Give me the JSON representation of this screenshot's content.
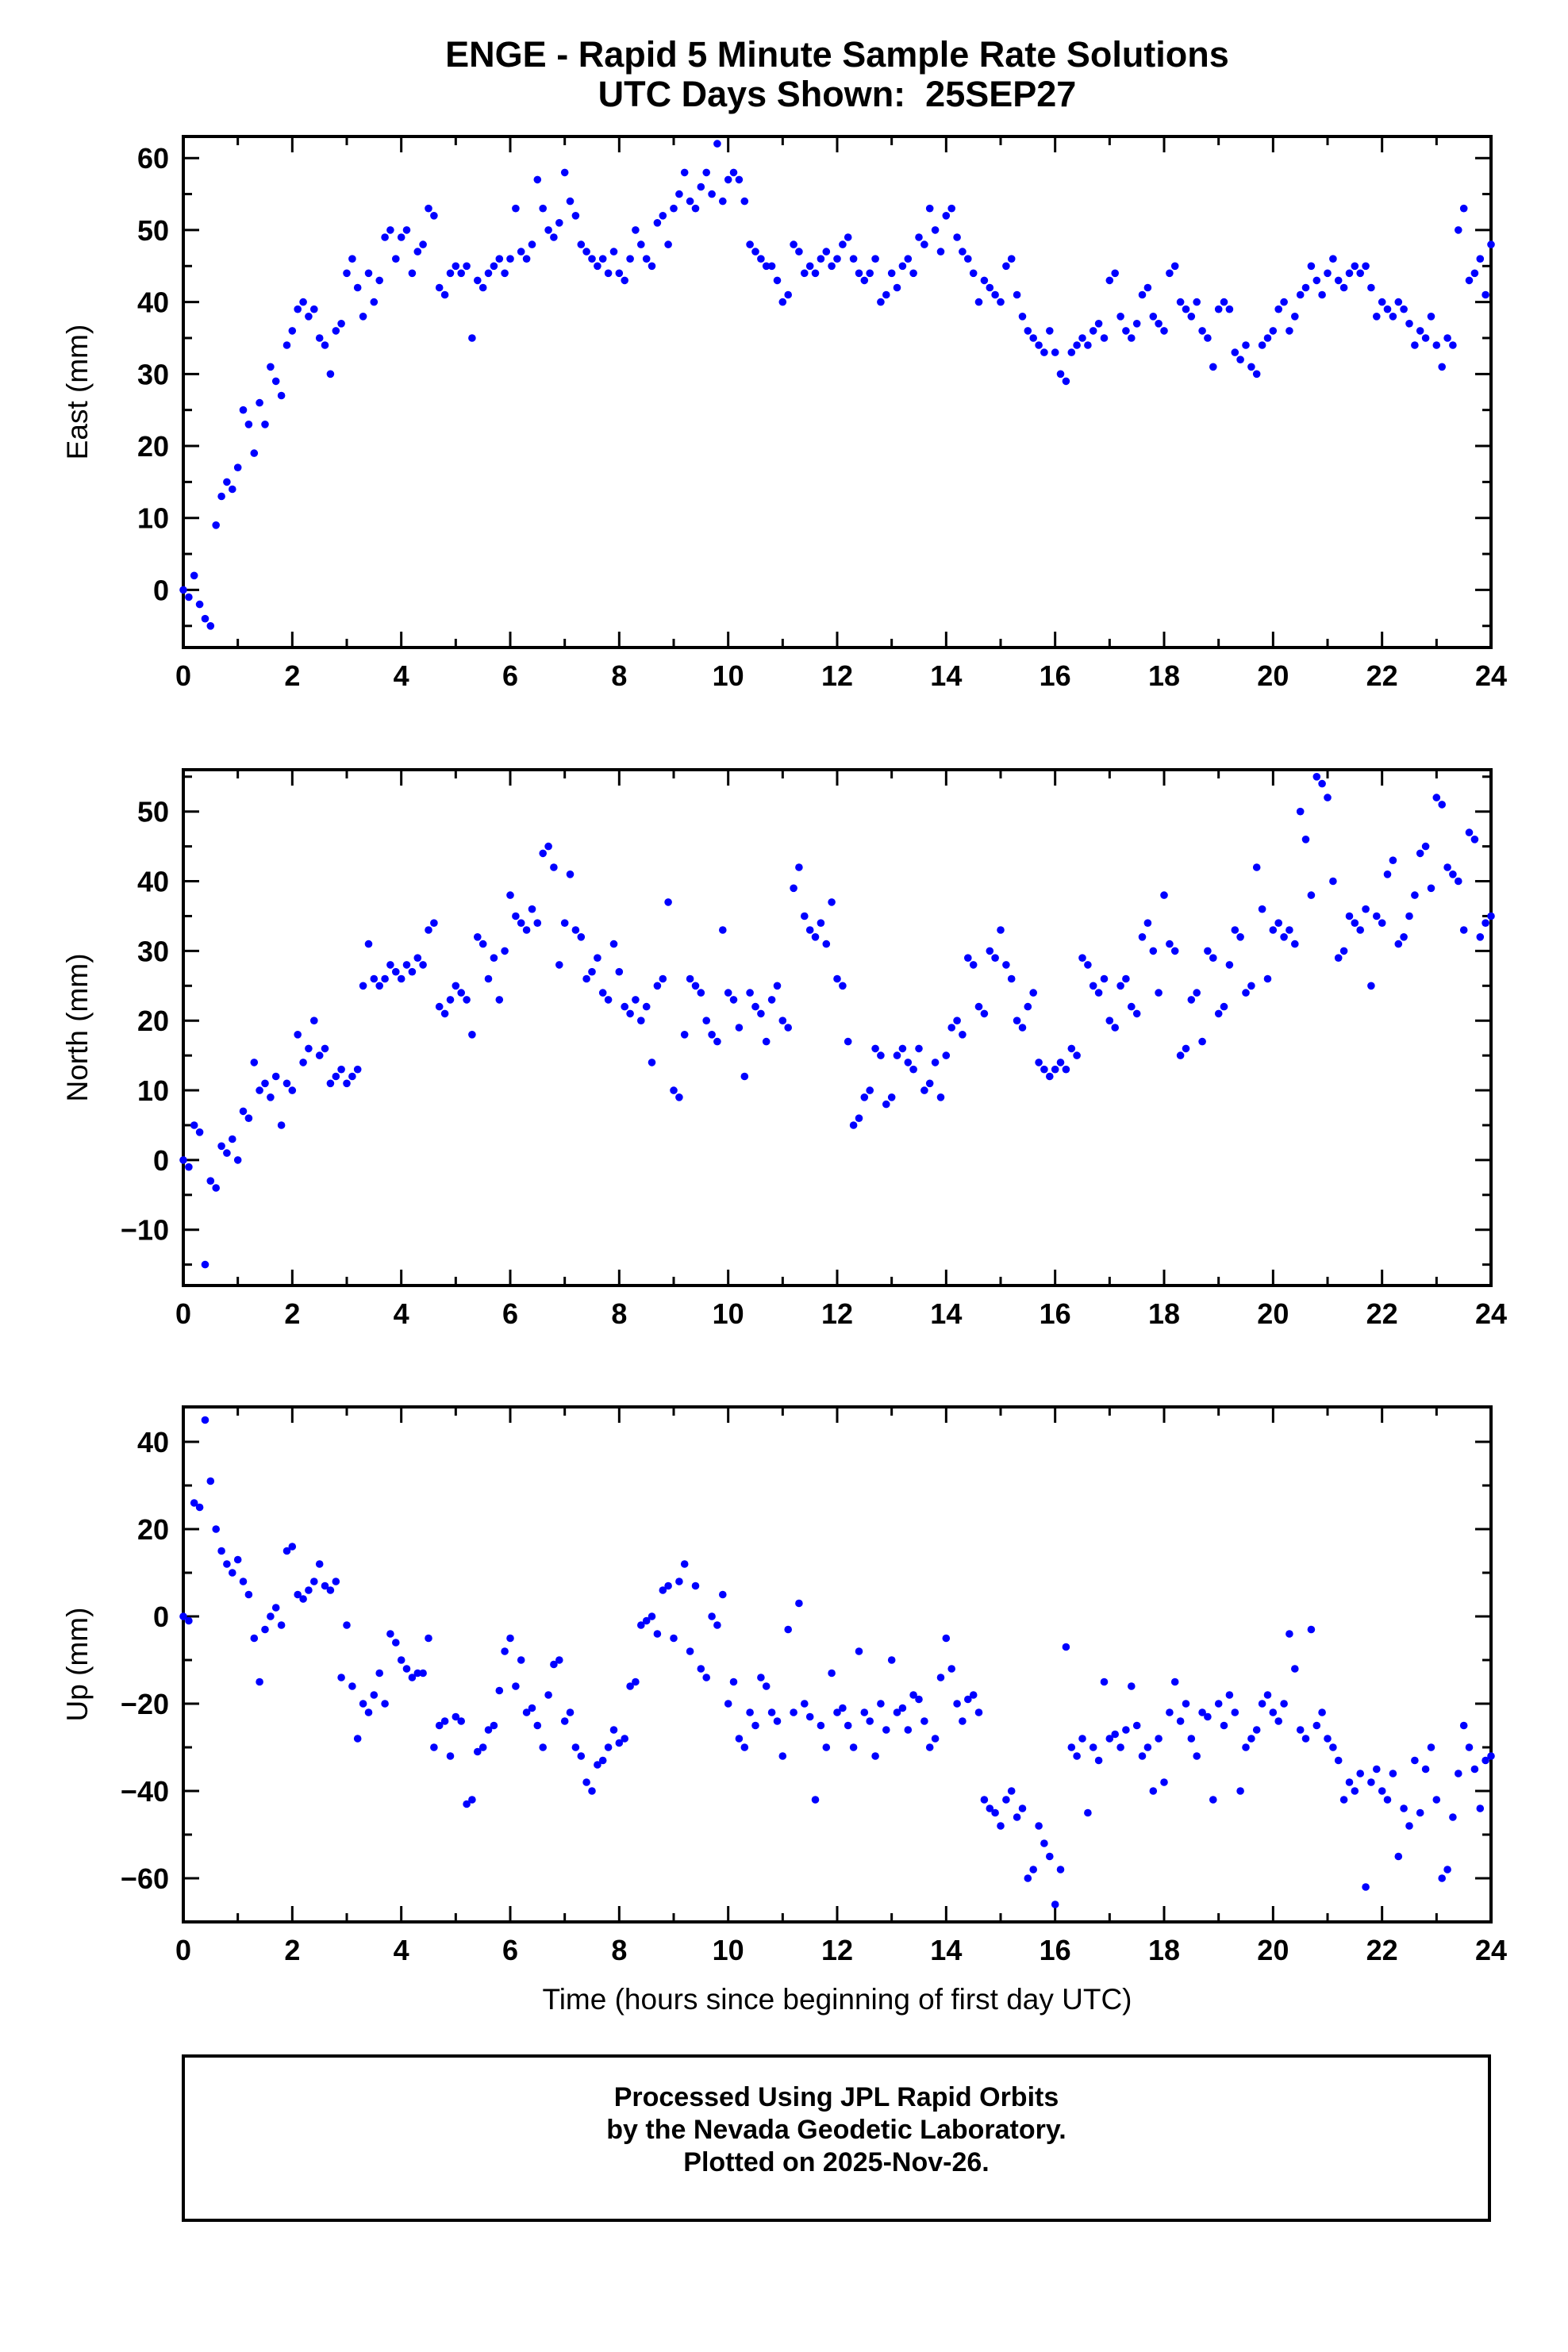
{
  "header": {
    "title_line1": "ENGE - Rapid 5 Minute Sample Rate Solutions",
    "title_line2": "UTC Days Shown:  25SEP27"
  },
  "xaxis": {
    "label": "Time (hours since beginning of first day UTC)",
    "range": [
      0,
      24
    ],
    "major_ticks": [
      0,
      2,
      4,
      6,
      8,
      10,
      12,
      14,
      16,
      18,
      20,
      22,
      24
    ],
    "minor_step": 1
  },
  "style": {
    "dot_color": "#0000ff",
    "frame_color": "#000000",
    "text_color": "#000000"
  },
  "footer_box": {
    "line1": "Processed Using JPL Rapid Orbits",
    "line2": "by the Nevada Geodetic Laboratory.",
    "line3": "Plotted on 2025-Nov-26."
  },
  "chart_data": [
    {
      "type": "scatter",
      "name": "east",
      "ylabel": "East (mm)",
      "ylim": [
        -8,
        63
      ],
      "yticks": [
        0,
        10,
        20,
        30,
        40,
        50,
        60
      ],
      "y_minor_step": 5,
      "x_start": 0,
      "x_step": 0.1,
      "values": [
        0,
        -1,
        2,
        -2,
        -4,
        -5,
        9,
        13,
        15,
        14,
        17,
        25,
        23,
        19,
        26,
        23,
        31,
        29,
        27,
        34,
        36,
        39,
        40,
        38,
        39,
        35,
        34,
        30,
        36,
        37,
        44,
        46,
        42,
        38,
        44,
        40,
        43,
        49,
        50,
        46,
        49,
        50,
        44,
        47,
        48,
        53,
        52,
        42,
        41,
        44,
        45,
        44,
        45,
        35,
        43,
        42,
        44,
        45,
        46,
        44,
        46,
        53,
        47,
        46,
        48,
        57,
        53,
        50,
        49,
        51,
        58,
        54,
        52,
        48,
        47,
        46,
        45,
        46,
        44,
        47,
        44,
        43,
        46,
        50,
        48,
        46,
        45,
        51,
        52,
        48,
        53,
        55,
        58,
        54,
        53,
        56,
        58,
        55,
        62,
        54,
        57,
        58,
        57,
        54,
        48,
        47,
        46,
        45,
        45,
        43,
        40,
        41,
        48,
        47,
        44,
        45,
        44,
        46,
        47,
        45,
        46,
        48,
        49,
        46,
        44,
        43,
        44,
        46,
        40,
        41,
        44,
        42,
        45,
        46,
        44,
        49,
        48,
        53,
        50,
        47,
        52,
        53,
        49,
        47,
        46,
        44,
        40,
        43,
        42,
        41,
        40,
        45,
        46,
        41,
        38,
        36,
        35,
        34,
        33,
        36,
        33,
        30,
        29,
        33,
        34,
        35,
        34,
        36,
        37,
        35,
        43,
        44,
        38,
        36,
        35,
        37,
        41,
        42,
        38,
        37,
        36,
        44,
        45,
        40,
        39,
        38,
        40,
        36,
        35,
        31,
        39,
        40,
        39,
        33,
        32,
        34,
        31,
        30,
        34,
        35,
        36,
        39,
        40,
        36,
        38,
        41,
        42,
        45,
        43,
        41,
        44,
        46,
        43,
        42,
        44,
        45,
        44,
        45,
        42,
        38,
        40,
        39,
        38,
        40,
        39,
        37,
        34,
        36,
        35,
        38,
        34,
        31,
        35,
        34,
        50,
        53,
        43,
        44,
        46,
        41,
        48
      ]
    },
    {
      "type": "scatter",
      "name": "north",
      "ylabel": "North (mm)",
      "ylim": [
        -18,
        56
      ],
      "yticks": [
        -10,
        0,
        10,
        20,
        30,
        40,
        50
      ],
      "y_minor_step": 5,
      "x_start": 0,
      "x_step": 0.1,
      "values": [
        0,
        -1,
        5,
        4,
        -15,
        -3,
        -4,
        2,
        1,
        3,
        0,
        7,
        6,
        14,
        10,
        11,
        9,
        12,
        5,
        11,
        10,
        18,
        14,
        16,
        20,
        15,
        16,
        11,
        12,
        13,
        11,
        12,
        13,
        25,
        31,
        26,
        25,
        26,
        28,
        27,
        26,
        28,
        27,
        29,
        28,
        33,
        34,
        22,
        21,
        23,
        25,
        24,
        23,
        18,
        32,
        31,
        26,
        29,
        23,
        30,
        38,
        35,
        34,
        33,
        36,
        34,
        44,
        45,
        42,
        28,
        34,
        41,
        33,
        32,
        26,
        27,
        29,
        24,
        23,
        31,
        27,
        22,
        21,
        23,
        20,
        22,
        14,
        25,
        26,
        37,
        10,
        9,
        18,
        26,
        25,
        24,
        20,
        18,
        17,
        33,
        24,
        23,
        19,
        12,
        24,
        22,
        21,
        17,
        23,
        25,
        20,
        19,
        39,
        42,
        35,
        33,
        32,
        34,
        31,
        37,
        26,
        25,
        17,
        5,
        6,
        9,
        10,
        16,
        15,
        8,
        9,
        15,
        16,
        14,
        13,
        16,
        10,
        11,
        14,
        9,
        15,
        19,
        20,
        18,
        29,
        28,
        22,
        21,
        30,
        29,
        33,
        28,
        26,
        20,
        19,
        22,
        24,
        14,
        13,
        12,
        13,
        14,
        13,
        16,
        15,
        29,
        28,
        25,
        24,
        26,
        20,
        19,
        25,
        26,
        22,
        21,
        32,
        34,
        30,
        24,
        38,
        31,
        30,
        15,
        16,
        23,
        24,
        17,
        30,
        29,
        21,
        22,
        28,
        33,
        32,
        24,
        25,
        42,
        36,
        26,
        33,
        34,
        32,
        33,
        31,
        50,
        46,
        38,
        55,
        54,
        52,
        40,
        29,
        30,
        35,
        34,
        33,
        36,
        25,
        35,
        34,
        41,
        43,
        31,
        32,
        35,
        38,
        44,
        45,
        39,
        52,
        51,
        42,
        41,
        40,
        33,
        47,
        46,
        32,
        34,
        35
      ]
    },
    {
      "type": "scatter",
      "name": "up",
      "ylabel": "Up (mm)",
      "ylim": [
        -70,
        48
      ],
      "yticks": [
        -60,
        -40,
        -20,
        0,
        20,
        40
      ],
      "y_minor_step": 10,
      "x_start": 0,
      "x_step": 0.1,
      "values": [
        0,
        -1,
        26,
        25,
        45,
        31,
        20,
        15,
        12,
        10,
        13,
        8,
        5,
        -5,
        -15,
        -3,
        0,
        2,
        -2,
        15,
        16,
        5,
        4,
        6,
        8,
        12,
        7,
        6,
        8,
        -14,
        -2,
        -16,
        -28,
        -20,
        -22,
        -18,
        -13,
        -20,
        -4,
        -6,
        -10,
        -12,
        -14,
        -13,
        -13,
        -5,
        -30,
        -25,
        -24,
        -32,
        -23,
        -24,
        -43,
        -42,
        -31,
        -30,
        -26,
        -25,
        -17,
        -8,
        -5,
        -16,
        -10,
        -22,
        -21,
        -25,
        -30,
        -18,
        -11,
        -10,
        -24,
        -22,
        -30,
        -32,
        -38,
        -40,
        -34,
        -33,
        -30,
        -26,
        -29,
        -28,
        -16,
        -15,
        -2,
        -1,
        0,
        -4,
        6,
        7,
        -5,
        8,
        12,
        -8,
        7,
        -12,
        -14,
        0,
        -2,
        5,
        -20,
        -15,
        -28,
        -30,
        -22,
        -25,
        -14,
        -16,
        -22,
        -24,
        -32,
        -3,
        -22,
        3,
        -20,
        -23,
        -42,
        -25,
        -30,
        -13,
        -22,
        -21,
        -25,
        -30,
        -8,
        -22,
        -24,
        -32,
        -20,
        -26,
        -10,
        -22,
        -21,
        -26,
        -18,
        -19,
        -24,
        -30,
        -28,
        -14,
        -5,
        -12,
        -20,
        -24,
        -19,
        -18,
        -22,
        -42,
        -44,
        -45,
        -48,
        -42,
        -40,
        -46,
        -44,
        -60,
        -58,
        -48,
        -52,
        -55,
        -66,
        -58,
        -7,
        -30,
        -32,
        -28,
        -45,
        -30,
        -33,
        -15,
        -28,
        -27,
        -30,
        -26,
        -16,
        -25,
        -32,
        -30,
        -40,
        -28,
        -38,
        -22,
        -15,
        -24,
        -20,
        -28,
        -32,
        -22,
        -23,
        -42,
        -20,
        -25,
        -18,
        -22,
        -40,
        -30,
        -28,
        -26,
        -20,
        -18,
        -22,
        -24,
        -20,
        -4,
        -12,
        -26,
        -28,
        -3,
        -25,
        -22,
        -28,
        -30,
        -33,
        -42,
        -38,
        -40,
        -36,
        -62,
        -38,
        -35,
        -40,
        -42,
        -36,
        -55,
        -44,
        -48,
        -33,
        -45,
        -35,
        -30,
        -42,
        -60,
        -58,
        -46,
        -36,
        -25,
        -30,
        -35,
        -44,
        -33,
        -32
      ]
    }
  ]
}
